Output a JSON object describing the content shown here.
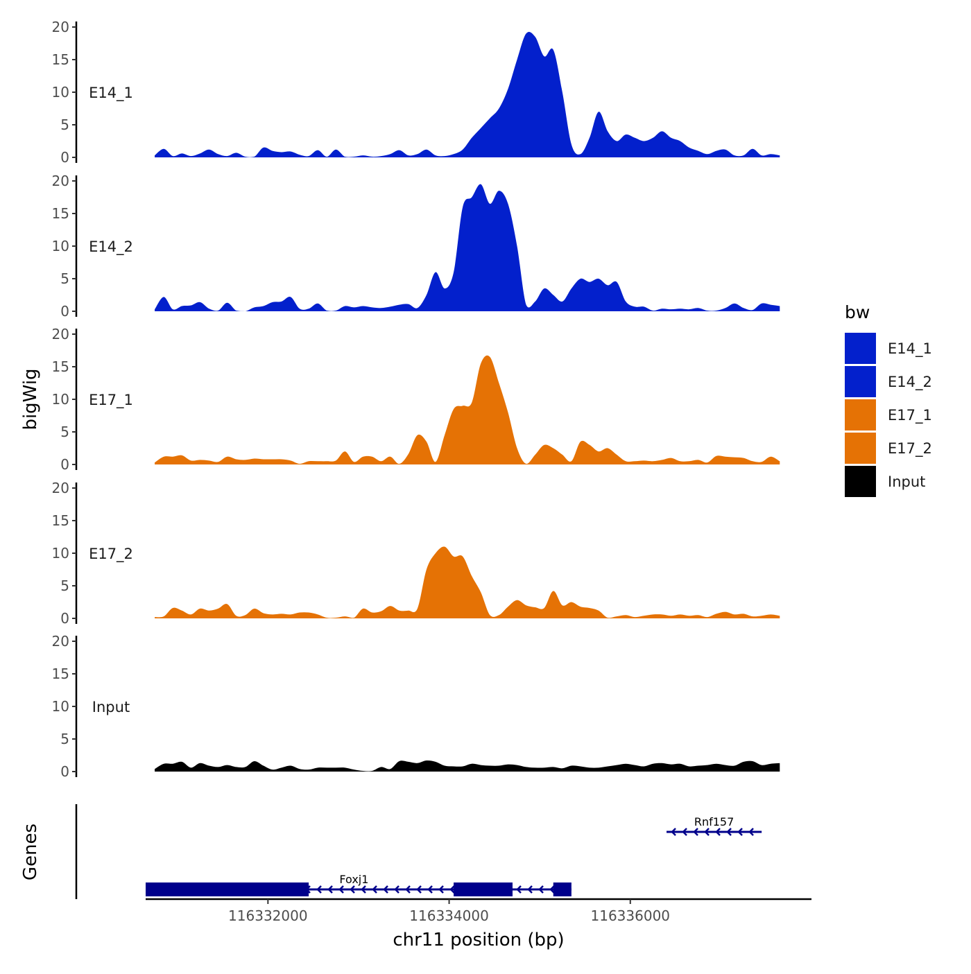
{
  "chart_data": {
    "type": "area",
    "title": "",
    "ylabel": "bigWig",
    "xlabel": "chr11 position (bp)",
    "genes_label": "Genes",
    "xlim": [
      116330650,
      116338000
    ],
    "x_ticks": [
      {
        "value": 116332000,
        "label": "116332000"
      },
      {
        "value": 116334000,
        "label": "116334000"
      },
      {
        "value": 116336000,
        "label": "116336000"
      }
    ],
    "ylim": [
      0,
      20
    ],
    "y_ticks": [
      "0",
      "5",
      "10",
      "15",
      "20"
    ],
    "legend": {
      "title": "bw",
      "entries": [
        {
          "name": "E14_1",
          "color": "#0320cc"
        },
        {
          "name": "E14_2",
          "color": "#0320cc"
        },
        {
          "name": "E17_1",
          "color": "#e57205"
        },
        {
          "name": "E17_2",
          "color": "#e57205"
        },
        {
          "name": "Input",
          "color": "#000000"
        }
      ]
    },
    "series": [
      {
        "name": "E14_1",
        "color": "#0320cc",
        "x": [
          116330750,
          116330850,
          116330950,
          116331050,
          116331150,
          116331250,
          116331350,
          116331450,
          116331550,
          116331650,
          116331750,
          116331850,
          116331950,
          116332050,
          116332150,
          116332250,
          116332350,
          116332450,
          116332550,
          116332650,
          116332750,
          116332850,
          116332950,
          116333050,
          116333150,
          116333250,
          116333350,
          116333450,
          116333550,
          116333650,
          116333750,
          116333850,
          116333950,
          116334050,
          116334150,
          116334250,
          116334350,
          116334450,
          116334550,
          116334650,
          116334750,
          116334850,
          116334950,
          116335050,
          116335150,
          116335250,
          116335350,
          116335450,
          116335550,
          116335650,
          116335750,
          116335850,
          116335950,
          116336050,
          116336150,
          116336250,
          116336350,
          116336450,
          116336550,
          116336650,
          116336750,
          116336850,
          116336950,
          116337050,
          116337150,
          116337250,
          116337350,
          116337450,
          116337550,
          116337650
        ],
        "values": [
          0.3,
          1.3,
          0.2,
          0.6,
          0.2,
          0.6,
          1.2,
          0.5,
          0.2,
          0.7,
          0.1,
          0.1,
          1.5,
          1.0,
          0.8,
          0.9,
          0.4,
          0.2,
          1.1,
          0.1,
          1.2,
          0.1,
          0.1,
          0.3,
          0.1,
          0.2,
          0.5,
          1.1,
          0.3,
          0.5,
          1.2,
          0.3,
          0.2,
          0.5,
          1.2,
          3.0,
          4.5,
          6.0,
          7.5,
          10.5,
          15.0,
          19.0,
          18.5,
          15.5,
          16.5,
          10.0,
          2.0,
          0.5,
          3.0,
          7.0,
          4.0,
          2.5,
          3.5,
          3.0,
          2.5,
          3.0,
          4.0,
          3.0,
          2.5,
          1.5,
          1.0,
          0.5,
          1.0,
          1.2,
          0.3,
          0.3,
          1.3,
          0.3,
          0.5,
          0.3
        ]
      },
      {
        "name": "E14_2",
        "color": "#0320cc",
        "x": [
          116330750,
          116330850,
          116330950,
          116331050,
          116331150,
          116331250,
          116331350,
          116331450,
          116331550,
          116331650,
          116331750,
          116331850,
          116331950,
          116332050,
          116332150,
          116332250,
          116332350,
          116332450,
          116332550,
          116332650,
          116332750,
          116332850,
          116332950,
          116333050,
          116333150,
          116333250,
          116333350,
          116333450,
          116333550,
          116333650,
          116333750,
          116333850,
          116333950,
          116334050,
          116334150,
          116334250,
          116334350,
          116334450,
          116334550,
          116334650,
          116334750,
          116334850,
          116334950,
          116335050,
          116335150,
          116335250,
          116335350,
          116335450,
          116335550,
          116335650,
          116335750,
          116335850,
          116335950,
          116336050,
          116336150,
          116336250,
          116336350,
          116336450,
          116336550,
          116336650,
          116336750,
          116336850,
          116336950,
          116337050,
          116337150,
          116337250,
          116337350,
          116337450,
          116337550,
          116337650
        ],
        "values": [
          0.3,
          2.2,
          0.3,
          0.8,
          0.9,
          1.4,
          0.4,
          0.1,
          1.3,
          0.1,
          0.0,
          0.6,
          0.8,
          1.4,
          1.5,
          2.2,
          0.4,
          0.4,
          1.2,
          0.1,
          0.1,
          0.8,
          0.6,
          0.8,
          0.6,
          0.5,
          0.7,
          1.0,
          1.1,
          0.5,
          2.5,
          6.0,
          3.5,
          6.0,
          16.0,
          17.5,
          19.5,
          16.5,
          18.5,
          16.5,
          10.0,
          1.0,
          1.5,
          3.5,
          2.5,
          1.5,
          3.5,
          5.0,
          4.5,
          5.0,
          4.0,
          4.5,
          1.5,
          0.7,
          0.7,
          0.1,
          0.4,
          0.3,
          0.4,
          0.3,
          0.5,
          0.1,
          0.1,
          0.5,
          1.2,
          0.5,
          0.2,
          1.2,
          1.0,
          0.8
        ]
      },
      {
        "name": "E17_1",
        "color": "#e57205",
        "x": [
          116330750,
          116330850,
          116330950,
          116331050,
          116331150,
          116331250,
          116331350,
          116331450,
          116331550,
          116331650,
          116331750,
          116331850,
          116331950,
          116332050,
          116332150,
          116332250,
          116332350,
          116332450,
          116332550,
          116332650,
          116332750,
          116332850,
          116332950,
          116333050,
          116333150,
          116333250,
          116333350,
          116333450,
          116333550,
          116333650,
          116333750,
          116333850,
          116333950,
          116334050,
          116334150,
          116334250,
          116334350,
          116334450,
          116334550,
          116334650,
          116334750,
          116334850,
          116334950,
          116335050,
          116335150,
          116335250,
          116335350,
          116335450,
          116335550,
          116335650,
          116335750,
          116335850,
          116335950,
          116336050,
          116336150,
          116336250,
          116336350,
          116336450,
          116336550,
          116336650,
          116336750,
          116336850,
          116336950,
          116337050,
          116337150,
          116337250,
          116337350,
          116337450,
          116337550,
          116337650
        ],
        "values": [
          0.3,
          1.2,
          1.2,
          1.4,
          0.6,
          0.7,
          0.6,
          0.4,
          1.2,
          0.8,
          0.7,
          0.9,
          0.8,
          0.8,
          0.8,
          0.6,
          0.1,
          0.5,
          0.5,
          0.5,
          0.6,
          2.0,
          0.4,
          1.2,
          1.2,
          0.5,
          1.2,
          0.1,
          1.6,
          4.5,
          3.5,
          0.4,
          4.5,
          8.5,
          9.0,
          9.5,
          15.5,
          16.5,
          12.5,
          8.0,
          2.5,
          0.1,
          1.5,
          3.0,
          2.5,
          1.5,
          0.5,
          3.5,
          3.0,
          2.0,
          2.5,
          1.5,
          0.5,
          0.5,
          0.6,
          0.5,
          0.7,
          1.0,
          0.5,
          0.5,
          0.7,
          0.3,
          1.3,
          1.2,
          1.1,
          1.0,
          0.5,
          0.4,
          1.2,
          0.5
        ]
      },
      {
        "name": "E17_2",
        "color": "#e57205",
        "x": [
          116330750,
          116330850,
          116330950,
          116331050,
          116331150,
          116331250,
          116331350,
          116331450,
          116331550,
          116331650,
          116331750,
          116331850,
          116331950,
          116332050,
          116332150,
          116332250,
          116332350,
          116332450,
          116332550,
          116332650,
          116332750,
          116332850,
          116332950,
          116333050,
          116333150,
          116333250,
          116333350,
          116333450,
          116333550,
          116333650,
          116333750,
          116333850,
          116333950,
          116334050,
          116334150,
          116334250,
          116334350,
          116334450,
          116334550,
          116334650,
          116334750,
          116334850,
          116334950,
          116335050,
          116335150,
          116335250,
          116335350,
          116335450,
          116335550,
          116335650,
          116335750,
          116335850,
          116335950,
          116336050,
          116336150,
          116336250,
          116336350,
          116336450,
          116336550,
          116336650,
          116336750,
          116336850,
          116336950,
          116337050,
          116337150,
          116337250,
          116337350,
          116337450,
          116337550,
          116337650
        ],
        "values": [
          0.2,
          0.3,
          1.6,
          1.2,
          0.6,
          1.5,
          1.2,
          1.5,
          2.2,
          0.4,
          0.5,
          1.5,
          0.8,
          0.6,
          0.7,
          0.6,
          0.9,
          0.9,
          0.6,
          0.1,
          0.1,
          0.3,
          0.1,
          1.5,
          0.9,
          1.1,
          1.9,
          1.2,
          1.2,
          1.5,
          7.5,
          10.0,
          11.0,
          9.5,
          9.5,
          6.5,
          4.0,
          0.5,
          0.5,
          1.8,
          2.8,
          2.0,
          1.7,
          1.6,
          4.2,
          2.0,
          2.5,
          1.8,
          1.6,
          1.2,
          0.1,
          0.3,
          0.5,
          0.2,
          0.4,
          0.6,
          0.6,
          0.4,
          0.6,
          0.4,
          0.5,
          0.2,
          0.7,
          1.0,
          0.6,
          0.7,
          0.3,
          0.4,
          0.6,
          0.4
        ]
      },
      {
        "name": "Input",
        "color": "#000000",
        "x": [
          116330750,
          116330850,
          116330950,
          116331050,
          116331150,
          116331250,
          116331350,
          116331450,
          116331550,
          116331650,
          116331750,
          116331850,
          116331950,
          116332050,
          116332150,
          116332250,
          116332350,
          116332450,
          116332550,
          116332650,
          116332750,
          116332850,
          116332950,
          116333050,
          116333150,
          116333250,
          116333350,
          116333450,
          116333550,
          116333650,
          116333750,
          116333850,
          116333950,
          116334050,
          116334150,
          116334250,
          116334350,
          116334450,
          116334550,
          116334650,
          116334750,
          116334850,
          116334950,
          116335050,
          116335150,
          116335250,
          116335350,
          116335450,
          116335550,
          116335650,
          116335750,
          116335850,
          116335950,
          116336050,
          116336150,
          116336250,
          116336350,
          116336450,
          116336550,
          116336650,
          116336750,
          116336850,
          116336950,
          116337050,
          116337150,
          116337250,
          116337350,
          116337450,
          116337550,
          116337650
        ],
        "values": [
          0.4,
          1.2,
          1.2,
          1.5,
          0.6,
          1.3,
          0.9,
          0.7,
          1.0,
          0.7,
          0.7,
          1.6,
          0.9,
          0.3,
          0.6,
          0.9,
          0.4,
          0.3,
          0.6,
          0.6,
          0.6,
          0.6,
          0.3,
          0.1,
          0.1,
          0.7,
          0.4,
          1.6,
          1.5,
          1.3,
          1.7,
          1.5,
          0.9,
          0.8,
          0.8,
          1.2,
          1.0,
          0.9,
          0.9,
          1.1,
          1.0,
          0.7,
          0.6,
          0.6,
          0.7,
          0.5,
          0.9,
          0.8,
          0.6,
          0.6,
          0.8,
          1.0,
          1.2,
          1.0,
          0.8,
          1.2,
          1.3,
          1.1,
          1.2,
          0.8,
          0.9,
          1.0,
          1.2,
          1.0,
          0.9,
          1.5,
          1.6,
          1.0,
          1.2,
          1.3
        ]
      }
    ],
    "genes": [
      {
        "name": "Rnf157",
        "start": 116336400,
        "end": 116337450,
        "strand": "-",
        "row": 1,
        "exons": []
      },
      {
        "name": "Foxj1",
        "start": 116330650,
        "end": 116335350,
        "strand": "-",
        "row": 2,
        "exons": [
          [
            116330650,
            116332450
          ],
          [
            116334050,
            116334700
          ],
          [
            116335150,
            116335350
          ]
        ]
      }
    ]
  }
}
